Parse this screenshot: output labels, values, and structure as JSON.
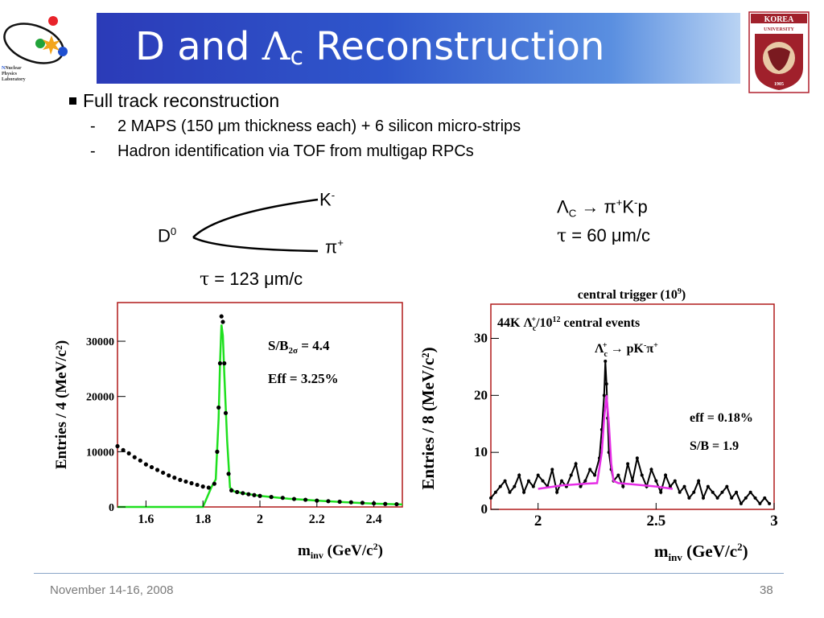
{
  "slide": {
    "title_prefix": "D and ",
    "title_lambda": "Λ",
    "title_lambda_sub": "c",
    "title_suffix": " Reconstruction",
    "bullet": "Full track reconstruction",
    "subbullets": [
      {
        "dash": "-",
        "text": "2 MAPS (150 μm thickness each) + 6 silicon micro-strips"
      },
      {
        "dash": "-",
        "text": "Hadron identification via TOF from multigap RPCs"
      }
    ],
    "logo_left": {
      "lines": [
        "Nuclear",
        "Physics",
        "Laboratory"
      ],
      "initials": [
        "N",
        "P",
        "L"
      ]
    },
    "logo_right": {
      "top": "KOREA",
      "bottom": "UNIVERSITY",
      "year": "1905"
    },
    "footer_date": "November 14-16, 2008",
    "footer_page": "38"
  },
  "diagram": {
    "parent": "D",
    "parent_sup": "0",
    "daughter1": "K",
    "daughter1_sup": "-",
    "daughter2": "π",
    "daughter2_sup": "+",
    "tau_symbol": "τ",
    "tau_text": " = 123 μm/c"
  },
  "lambda_decay": {
    "parent": "Λ",
    "parent_sub": "C",
    "arrow_rest_1": " → π",
    "sup1": "+",
    "rest_2": "K",
    "sup2": "-",
    "rest_3": "p",
    "tau_symbol": "τ",
    "tau_text": " = 60 μm/c"
  },
  "chart_data": [
    {
      "type": "scatter",
      "ylabel": "Entries / 4 (MeV/c²)",
      "xlabel_main": "m",
      "xlabel_sub": "inv",
      "xlabel_unit": " (GeV/c",
      "xlabel_sup": "2",
      "xlabel_close": ")",
      "xlim": [
        1.5,
        2.5
      ],
      "ylim": [
        0,
        37000
      ],
      "xticks": [
        1.6,
        1.8,
        2.0,
        2.2,
        2.4
      ],
      "xtick_labels": [
        "1.6",
        "1.8",
        "2",
        "2.2",
        "2.4"
      ],
      "yticks": [
        0,
        10000,
        20000,
        30000
      ],
      "ytick_labels": [
        "0",
        "10000",
        "20000",
        "30000"
      ],
      "annotation1_main": "S/B",
      "annotation1_sub": "2σ",
      "annotation1_rest": " = 4.4",
      "annotation2": "Eff = 3.25%",
      "fit_color": "#1fe01f",
      "series": [
        {
          "x": [
            1.5,
            1.52,
            1.54,
            1.56,
            1.58,
            1.6,
            1.62,
            1.64,
            1.66,
            1.68,
            1.7,
            1.72,
            1.74,
            1.76,
            1.78,
            1.8,
            1.82,
            1.84,
            1.85,
            1.855,
            1.86,
            1.865,
            1.87,
            1.875,
            1.88,
            1.89,
            1.9,
            1.92,
            1.94,
            1.96,
            1.98,
            2.0,
            2.04,
            2.08,
            2.12,
            2.16,
            2.2,
            2.24,
            2.28,
            2.32,
            2.36,
            2.4,
            2.44,
            2.48
          ],
          "y": [
            11000,
            10300,
            9700,
            9000,
            8400,
            7700,
            7200,
            6700,
            6200,
            5700,
            5300,
            4900,
            4600,
            4300,
            4000,
            3700,
            3500,
            4200,
            10000,
            18000,
            26000,
            34500,
            33500,
            26000,
            17000,
            6000,
            3000,
            2700,
            2500,
            2300,
            2150,
            2000,
            1800,
            1650,
            1450,
            1300,
            1150,
            1050,
            950,
            850,
            750,
            650,
            550,
            500
          ]
        }
      ],
      "fit": {
        "x": [
          1.5,
          1.6,
          1.7,
          1.8,
          1.83,
          1.845,
          1.855,
          1.86,
          1.865,
          1.87,
          1.875,
          1.885,
          1.895,
          1.91,
          1.95,
          2.0,
          2.1,
          2.2,
          2.3,
          2.4,
          2.5
        ],
        "y": [
          0,
          0,
          0,
          0,
          3600,
          5000,
          16000,
          26000,
          33000,
          31000,
          24000,
          12000,
          3500,
          2800,
          2400,
          2000,
          1500,
          1150,
          850,
          600,
          450
        ]
      }
    },
    {
      "type": "scatter",
      "title": "central trigger (10",
      "title_sup": "9",
      "title_close": ")",
      "ylabel": "Entries / 8 (MeV/c²)",
      "xlabel_main": "m",
      "xlabel_sub": "inv",
      "xlabel_unit": "  (GeV/c",
      "xlabel_sup": "2",
      "xlabel_close": ")",
      "xlim": [
        1.8,
        3.0
      ],
      "ylim": [
        0,
        36
      ],
      "xticks": [
        2.0,
        2.5,
        3.0
      ],
      "xtick_labels": [
        "2",
        "2.5",
        "3"
      ],
      "yticks": [
        0,
        10,
        20,
        30
      ],
      "ytick_labels": [
        "0",
        "10",
        "20",
        "30"
      ],
      "annotation_events_a": "44K Λ",
      "annotation_events_sub": "c",
      "annotation_events_sup": "+",
      "annotation_events_b": "/10",
      "annotation_events_sup2": "12",
      "annotation_events_c": " central events",
      "annotation_decay_a": "Λ",
      "annotation_decay_sub": "c",
      "annotation_decay_sup": "+",
      "annotation_decay_b": " → pK",
      "annotation_decay_sup2": "-",
      "annotation_decay_c": "π",
      "annotation_decay_sup3": "+",
      "annotation_eff": "eff = 0.18%",
      "annotation_sb": "S/B = 1.9",
      "fit_color": "#e62ee6",
      "series": [
        {
          "x": [
            1.8,
            1.82,
            1.84,
            1.86,
            1.88,
            1.9,
            1.92,
            1.94,
            1.96,
            1.98,
            2.0,
            2.02,
            2.04,
            2.06,
            2.08,
            2.1,
            2.12,
            2.14,
            2.16,
            2.18,
            2.2,
            2.22,
            2.24,
            2.26,
            2.27,
            2.28,
            2.285,
            2.29,
            2.295,
            2.3,
            2.31,
            2.32,
            2.34,
            2.36,
            2.38,
            2.4,
            2.42,
            2.44,
            2.46,
            2.48,
            2.5,
            2.52,
            2.54,
            2.56,
            2.58,
            2.6,
            2.62,
            2.64,
            2.66,
            2.68,
            2.7,
            2.72,
            2.74,
            2.76,
            2.78,
            2.8,
            2.82,
            2.84,
            2.86,
            2.88,
            2.9,
            2.92,
            2.94,
            2.96,
            2.98
          ],
          "y": [
            2,
            3,
            4,
            5,
            3,
            4,
            6,
            3,
            5,
            4,
            6,
            5,
            4,
            7,
            3,
            5,
            4,
            6,
            8,
            4,
            5,
            7,
            6,
            9,
            14,
            20,
            26,
            22,
            16,
            10,
            7,
            5,
            6,
            4,
            8,
            5,
            9,
            6,
            4,
            7,
            5,
            3,
            6,
            4,
            5,
            3,
            4,
            2,
            3,
            5,
            2,
            4,
            3,
            2,
            3,
            4,
            2,
            3,
            1,
            2,
            3,
            2,
            1,
            2,
            1
          ]
        }
      ],
      "fit": {
        "x": [
          2.0,
          2.1,
          2.2,
          2.25,
          2.27,
          2.28,
          2.29,
          2.3,
          2.31,
          2.32,
          2.34,
          2.4,
          2.5,
          2.57
        ],
        "y": [
          3.6,
          4.2,
          4.5,
          4.6,
          10,
          16,
          20,
          15,
          8,
          5,
          4.6,
          4.4,
          4.0,
          3.6
        ]
      }
    }
  ]
}
